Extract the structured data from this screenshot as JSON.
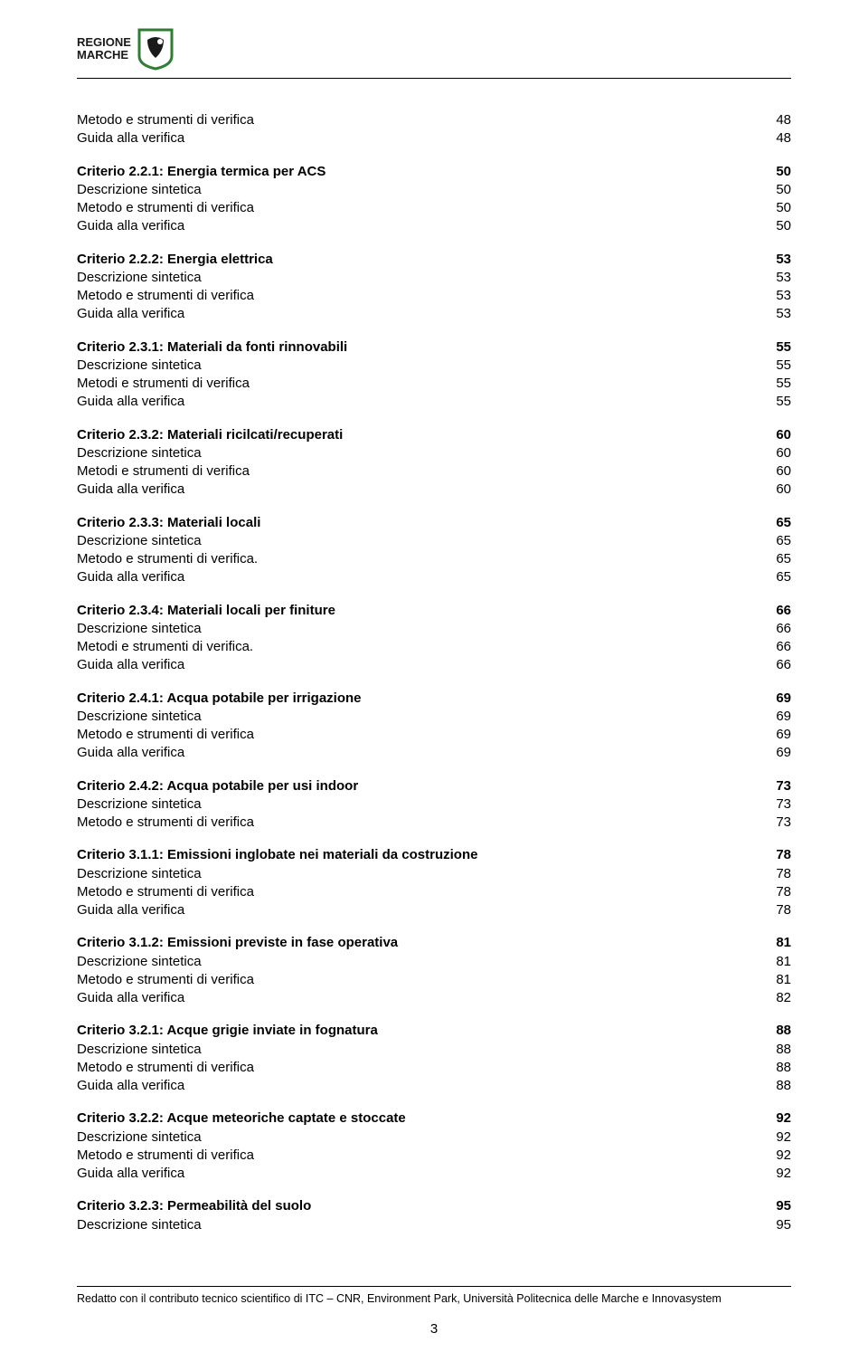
{
  "logo": {
    "line1": "REGIONE",
    "line2": "MARCHE",
    "shield_border": "#2e7d32",
    "shield_bg": "#ffffff",
    "shield_inner": "#1a1a1a"
  },
  "toc": [
    {
      "rows": [
        {
          "label": "Metodo e strumenti di verifica",
          "page": "48",
          "bold": false
        },
        {
          "label": "Guida alla verifica",
          "page": "48",
          "bold": false
        }
      ]
    },
    {
      "rows": [
        {
          "label": "Criterio 2.2.1: Energia termica per ACS",
          "page": "50",
          "bold": true
        },
        {
          "label": "Descrizione sintetica",
          "page": "50",
          "bold": false
        },
        {
          "label": "Metodo e strumenti di verifica",
          "page": "50",
          "bold": false
        },
        {
          "label": "Guida alla verifica",
          "page": "50",
          "bold": false
        }
      ]
    },
    {
      "rows": [
        {
          "label": "Criterio 2.2.2: Energia elettrica",
          "page": "53",
          "bold": true
        },
        {
          "label": "Descrizione sintetica",
          "page": "53",
          "bold": false
        },
        {
          "label": "Metodo e strumenti di verifica",
          "page": "53",
          "bold": false
        },
        {
          "label": "Guida alla verifica",
          "page": "53",
          "bold": false
        }
      ]
    },
    {
      "rows": [
        {
          "label": "Criterio 2.3.1: Materiali da fonti rinnovabili",
          "page": "55",
          "bold": true
        },
        {
          "label": "Descrizione sintetica",
          "page": "55",
          "bold": false
        },
        {
          "label": "Metodi e strumenti di verifica",
          "page": "55",
          "bold": false
        },
        {
          "label": "Guida alla verifica",
          "page": "55",
          "bold": false
        }
      ]
    },
    {
      "rows": [
        {
          "label": "Criterio 2.3.2: Materiali ricilcati/recuperati",
          "page": "60",
          "bold": true
        },
        {
          "label": "Descrizione sintetica",
          "page": "60",
          "bold": false
        },
        {
          "label": "Metodi e strumenti di verifica",
          "page": "60",
          "bold": false
        },
        {
          "label": "Guida alla verifica",
          "page": "60",
          "bold": false
        }
      ]
    },
    {
      "rows": [
        {
          "label": "Criterio 2.3.3: Materiali locali",
          "page": "65",
          "bold": true
        },
        {
          "label": "Descrizione sintetica",
          "page": "65",
          "bold": false
        },
        {
          "label": "Metodo e strumenti di verifica.",
          "page": "65",
          "bold": false
        },
        {
          "label": "Guida alla verifica",
          "page": "65",
          "bold": false
        }
      ]
    },
    {
      "rows": [
        {
          "label": "Criterio 2.3.4: Materiali locali per finiture",
          "page": "66",
          "bold": true
        },
        {
          "label": "Descrizione sintetica",
          "page": "66",
          "bold": false
        },
        {
          "label": "Metodi e strumenti di verifica.",
          "page": "66",
          "bold": false
        },
        {
          "label": "Guida alla verifica",
          "page": "66",
          "bold": false
        }
      ]
    },
    {
      "rows": [
        {
          "label": "Criterio 2.4.1: Acqua potabile per irrigazione",
          "page": "69",
          "bold": true
        },
        {
          "label": "Descrizione sintetica",
          "page": "69",
          "bold": false
        },
        {
          "label": "Metodo e strumenti di verifica",
          "page": "69",
          "bold": false
        },
        {
          "label": "Guida alla verifica",
          "page": "69",
          "bold": false
        }
      ]
    },
    {
      "rows": [
        {
          "label": "Criterio 2.4.2: Acqua potabile per usi indoor",
          "page": "73",
          "bold": true
        },
        {
          "label": "Descrizione sintetica",
          "page": "73",
          "bold": false
        },
        {
          "label": "Metodo e strumenti di verifica",
          "page": "73",
          "bold": false
        }
      ]
    },
    {
      "rows": [
        {
          "label": "Criterio 3.1.1: Emissioni inglobate nei materiali da costruzione",
          "page": "78",
          "bold": true
        },
        {
          "label": "Descrizione sintetica",
          "page": "78",
          "bold": false
        },
        {
          "label": "Metodo e strumenti di verifica",
          "page": "78",
          "bold": false
        },
        {
          "label": "Guida alla verifica",
          "page": "78",
          "bold": false
        }
      ]
    },
    {
      "rows": [
        {
          "label": "Criterio 3.1.2: Emissioni previste in fase operativa",
          "page": "81",
          "bold": true
        },
        {
          "label": "Descrizione sintetica",
          "page": "81",
          "bold": false
        },
        {
          "label": "Metodo e strumenti di verifica",
          "page": "81",
          "bold": false
        },
        {
          "label": "Guida alla verifica",
          "page": "82",
          "bold": false
        }
      ]
    },
    {
      "rows": [
        {
          "label": "Criterio 3.2.1: Acque grigie inviate in fognatura",
          "page": "88",
          "bold": true
        },
        {
          "label": "Descrizione sintetica",
          "page": "88",
          "bold": false
        },
        {
          "label": "Metodo e strumenti di verifica",
          "page": "88",
          "bold": false
        },
        {
          "label": "Guida alla verifica",
          "page": "88",
          "bold": false
        }
      ]
    },
    {
      "rows": [
        {
          "label": "Criterio 3.2.2: Acque meteoriche captate e stoccate",
          "page": "92",
          "bold": true
        },
        {
          "label": "Descrizione sintetica",
          "page": "92",
          "bold": false
        },
        {
          "label": "Metodo e strumenti di verifica",
          "page": "92",
          "bold": false
        },
        {
          "label": "Guida alla verifica",
          "page": "92",
          "bold": false
        }
      ]
    },
    {
      "rows": [
        {
          "label": "Criterio 3.2.3: Permeabilità del suolo",
          "page": "95",
          "bold": true
        },
        {
          "label": "Descrizione sintetica",
          "page": "95",
          "bold": false
        }
      ]
    }
  ],
  "footer": {
    "text": "Redatto con il contributo tecnico scientifico di ITC – CNR, Environment Park, Università Politecnica delle Marche e Innovasystem",
    "page_number": "3"
  }
}
